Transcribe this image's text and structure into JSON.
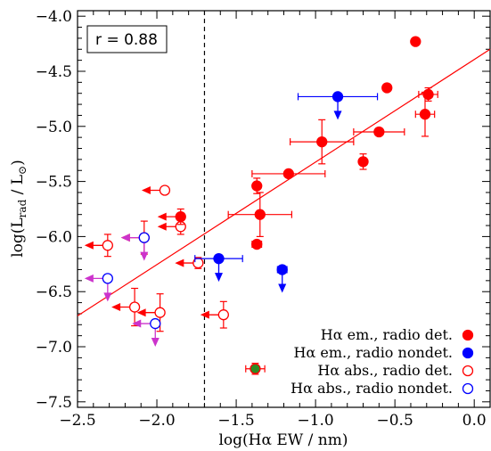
{
  "chart_data": {
    "type": "scatter",
    "xlim": [
      -2.5,
      0.1
    ],
    "ylim": [
      -7.55,
      -3.95
    ],
    "x_ticks": [
      -2.5,
      -2.0,
      -1.5,
      -1.0,
      -0.5,
      0.0
    ],
    "x_tick_labels": [
      "−2.5",
      "−2.0",
      "−1.5",
      "−1.0",
      "−0.5",
      "0.0"
    ],
    "y_ticks": [
      -4.0,
      -4.5,
      -5.0,
      -5.5,
      -6.0,
      -6.5,
      -7.0,
      -7.5
    ],
    "y_tick_labels": [
      "−4.0",
      "−4.5",
      "−5.0",
      "−5.5",
      "−6.0",
      "−6.5",
      "−7.0",
      "−7.5"
    ],
    "xlabel": "log(Hα EW / nm)",
    "ylabel_main": "log(L",
    "ylabel_sub": "rad",
    "ylabel_rest": " / L",
    "ylabel_sun": "⊙",
    "ylabel_close": ")",
    "annotation": "r = 0.88",
    "vline_x": -1.7,
    "fit_line": {
      "x": [
        -2.5,
        0.1
      ],
      "y": [
        -6.72,
        -4.3
      ]
    },
    "colors": {
      "red": "#ff0000",
      "blue": "#0000ff",
      "magenta": "#cc33cc",
      "green": "#2e8b22"
    },
    "legend": [
      {
        "label": "Hα em., radio det.",
        "style": "red-filled"
      },
      {
        "label": "Hα em., radio nondet.",
        "style": "blue-filled"
      },
      {
        "label": "Hα abs., radio det.",
        "style": "red-open"
      },
      {
        "label": "Hα abs., radio nondet.",
        "style": "blue-open"
      }
    ],
    "series": [
      {
        "name": "Hα em., radio det.",
        "marker": "red-filled",
        "points": [
          {
            "x": -0.37,
            "y": -4.23
          },
          {
            "x": -0.55,
            "y": -4.65
          },
          {
            "x": -0.29,
            "y": -4.71,
            "xerr": 0.06,
            "yerr": 0.06
          },
          {
            "x": -0.31,
            "y": -4.89,
            "xerr": 0.06,
            "yerr": 0.2
          },
          {
            "x": -0.6,
            "y": -5.05,
            "xerr": 0.16,
            "yerr": 0.02
          },
          {
            "x": -0.96,
            "y": -5.14,
            "xerr": 0.2,
            "yerr": 0.2
          },
          {
            "x": -0.7,
            "y": -5.32,
            "yerr": 0.07
          },
          {
            "x": -1.17,
            "y": -5.43,
            "xerr": 0.23
          },
          {
            "x": -1.37,
            "y": -5.54,
            "yerr": 0.07
          },
          {
            "x": -1.35,
            "y": -5.8,
            "xerr": 0.2,
            "yerr": 0.2
          },
          {
            "x": -1.37,
            "y": -6.07,
            "xerr": 0.03,
            "yerr": 0.02
          },
          {
            "x": -1.85,
            "y": -5.82,
            "yerr": 0.07,
            "upper_x": true
          }
        ]
      },
      {
        "name": "Hα em., radio nondet.",
        "marker": "blue-filled",
        "points": [
          {
            "x": -0.86,
            "y": -4.73,
            "xerr": 0.25,
            "upper_y": true
          },
          {
            "x": -1.61,
            "y": -6.2,
            "xerr": 0.15,
            "upper_y": true
          },
          {
            "x": -1.21,
            "y": -6.3,
            "xerr": 0.03,
            "upper_y": true
          }
        ]
      },
      {
        "name": "Hα abs., radio det.",
        "marker": "red-open",
        "points": [
          {
            "x": -1.95,
            "y": -5.58,
            "upper_x": true
          },
          {
            "x": -1.85,
            "y": -5.91,
            "yerr": 0.07,
            "upper_x": true
          },
          {
            "x": -2.08,
            "y": -6.01,
            "yerr": 0.15,
            "upper_x": true
          },
          {
            "x": -2.31,
            "y": -6.08,
            "yerr": 0.1,
            "upper_x": true
          },
          {
            "x": -1.74,
            "y": -6.24,
            "yerr": 0.05,
            "upper_x": true
          },
          {
            "x": -2.14,
            "y": -6.64,
            "yerr": 0.17,
            "upper_x": true
          },
          {
            "x": -1.98,
            "y": -6.69,
            "yerr": 0.17,
            "upper_x": true
          },
          {
            "x": -1.58,
            "y": -6.71,
            "yerr": 0.12,
            "upper_x": true
          }
        ]
      },
      {
        "name": "Hα abs., radio nondet.",
        "marker": "blue-open",
        "points": [
          {
            "x": -2.08,
            "y": -6.01,
            "upper_x": true,
            "upper_y": true
          },
          {
            "x": -2.31,
            "y": -6.38,
            "upper_x": true,
            "upper_y": true
          },
          {
            "x": -2.01,
            "y": -6.79,
            "upper_x": true,
            "upper_y": true
          }
        ]
      },
      {
        "marker": "green-filled",
        "points": [
          {
            "x": -1.38,
            "y": -7.2,
            "xerr": 0.06,
            "yerr": 0.05
          }
        ]
      }
    ]
  }
}
